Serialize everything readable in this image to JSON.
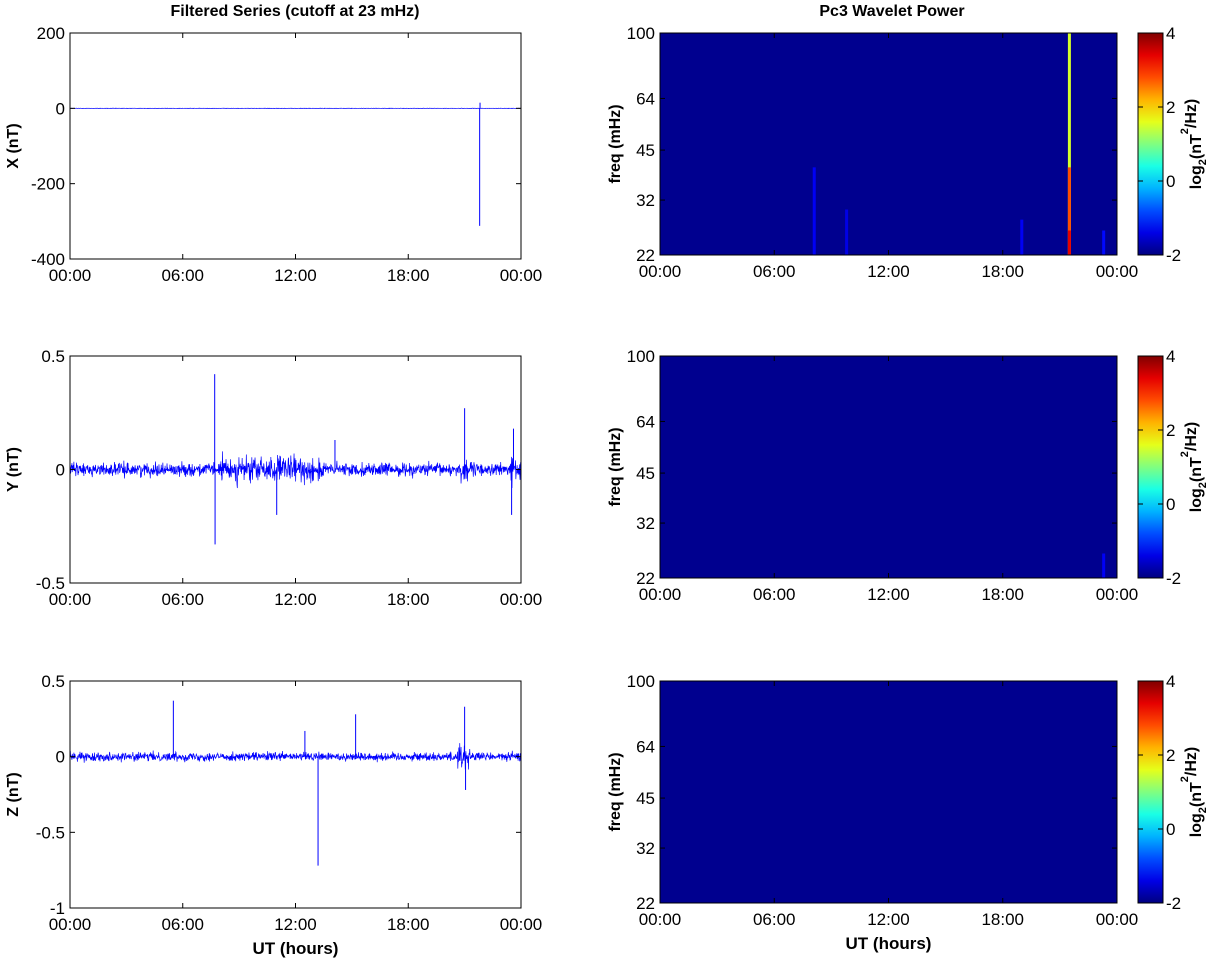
{
  "titles": {
    "left": "Filtered Series (cutoff at 23 mHz)",
    "right": "Pc3 Wavelet Power"
  },
  "xlabel": "UT (hours)",
  "colors": {
    "trace": "#0000ff",
    "spectrogram_bg": "#00008f",
    "axis": "#000000"
  },
  "chart_data": [
    {
      "type": "line",
      "ylabel": "X (nT)",
      "xlabel": "",
      "x_ticks": [
        "00:00",
        "06:00",
        "12:00",
        "18:00",
        "00:00"
      ],
      "xlim": [
        0,
        24
      ],
      "ylim": [
        -400,
        200
      ],
      "y_ticks": [
        200,
        0,
        -200,
        -400
      ],
      "y_tick_labels": [
        "200",
        "0",
        "-200",
        "-400"
      ],
      "series": [
        {
          "baseline": 0,
          "noise": 0.5,
          "spikes": [
            {
              "x": 21.8,
              "y": -312
            },
            {
              "x": 21.82,
              "y": 15
            }
          ]
        }
      ]
    },
    {
      "type": "line",
      "ylabel": "Y (nT)",
      "xlabel": "",
      "x_ticks": [
        "00:00",
        "06:00",
        "12:00",
        "18:00",
        "00:00"
      ],
      "xlim": [
        0,
        24
      ],
      "ylim": [
        -0.5,
        0.5
      ],
      "y_ticks": [
        0.5,
        0,
        -0.5
      ],
      "y_tick_labels": [
        "0.5",
        "0",
        "-0.5"
      ],
      "series": [
        {
          "baseline": 0,
          "noise": 0.03,
          "bursts": [
            {
              "x0": 8.0,
              "x1": 13.5,
              "amp": 0.06
            },
            {
              "x0": 20.8,
              "x1": 21.2,
              "amp": 0.07
            },
            {
              "x0": 23.4,
              "x1": 24,
              "amp": 0.06
            }
          ],
          "spikes": [
            {
              "x": 7.7,
              "y": 0.42
            },
            {
              "x": 7.72,
              "y": -0.33
            },
            {
              "x": 21.0,
              "y": 0.27
            },
            {
              "x": 23.6,
              "y": 0.18
            },
            {
              "x": 23.5,
              "y": -0.2
            },
            {
              "x": 11.0,
              "y": -0.2
            },
            {
              "x": 14.1,
              "y": 0.13
            }
          ]
        }
      ]
    },
    {
      "type": "line",
      "ylabel": "Z (nT)",
      "xlabel": "UT (hours)",
      "x_ticks": [
        "00:00",
        "06:00",
        "12:00",
        "18:00",
        "00:00"
      ],
      "xlim": [
        0,
        24
      ],
      "ylim": [
        -1,
        0.5
      ],
      "y_ticks": [
        0.5,
        0,
        -0.5,
        -1
      ],
      "y_tick_labels": [
        "0.5",
        "0",
        "-0.5",
        "-1"
      ],
      "series": [
        {
          "baseline": 0,
          "noise": 0.03,
          "bursts": [
            {
              "x0": 20.6,
              "x1": 21.3,
              "amp": 0.1
            }
          ],
          "spikes": [
            {
              "x": 5.5,
              "y": 0.37
            },
            {
              "x": 13.2,
              "y": -0.72
            },
            {
              "x": 15.2,
              "y": 0.28
            },
            {
              "x": 21.0,
              "y": 0.33
            },
            {
              "x": 21.05,
              "y": -0.22
            },
            {
              "x": 12.5,
              "y": 0.17
            }
          ]
        }
      ]
    },
    {
      "type": "heatmap",
      "ylabel": "freq (mHz)",
      "xlabel": "",
      "x_ticks": [
        "00:00",
        "06:00",
        "12:00",
        "18:00",
        "00:00"
      ],
      "xlim": [
        0,
        24
      ],
      "y_scale": "log",
      "ylim": [
        22,
        100
      ],
      "y_ticks": [
        100,
        64,
        45,
        32,
        22
      ],
      "y_tick_labels": [
        "100",
        "64",
        "45",
        "32",
        "22"
      ],
      "colorbar": {
        "label": "log2(nT2/Hz)",
        "label_main": "log",
        "label_sub": "2",
        "label_open": "(nT",
        "label_sup": "2",
        "label_close": "/Hz)",
        "range": [
          -2,
          4
        ],
        "ticks": [
          4,
          2,
          0,
          -2
        ],
        "tick_labels": [
          "4",
          "2",
          "0",
          "-2"
        ]
      },
      "features": [
        {
          "x": 21.5,
          "f_low": 22,
          "f_high": 100,
          "value": 1.5
        },
        {
          "x": 21.5,
          "f_low": 22,
          "f_high": 40,
          "value": 2.8
        },
        {
          "x": 21.5,
          "f_low": 22,
          "f_high": 26,
          "value": 3.4
        },
        {
          "x": 8.1,
          "f_low": 22,
          "f_high": 40,
          "value": -1.3
        },
        {
          "x": 9.8,
          "f_low": 22,
          "f_high": 30,
          "value": -1.4
        },
        {
          "x": 19.0,
          "f_low": 22,
          "f_high": 28,
          "value": -1.3
        },
        {
          "x": 23.3,
          "f_low": 22,
          "f_high": 26,
          "value": -1.2
        }
      ]
    },
    {
      "type": "heatmap",
      "ylabel": "freq (mHz)",
      "xlabel": "",
      "x_ticks": [
        "00:00",
        "06:00",
        "12:00",
        "18:00",
        "00:00"
      ],
      "xlim": [
        0,
        24
      ],
      "y_scale": "log",
      "ylim": [
        22,
        100
      ],
      "y_ticks": [
        100,
        64,
        45,
        32,
        22
      ],
      "y_tick_labels": [
        "100",
        "64",
        "45",
        "32",
        "22"
      ],
      "colorbar": {
        "label": "log2(nT2/Hz)",
        "label_main": "log",
        "label_sub": "2",
        "label_open": "(nT",
        "label_sup": "2",
        "label_close": "/Hz)",
        "range": [
          -2,
          4
        ],
        "ticks": [
          4,
          2,
          0,
          -2
        ],
        "tick_labels": [
          "4",
          "2",
          "0",
          "-2"
        ]
      },
      "features": [
        {
          "x": 23.3,
          "f_low": 22,
          "f_high": 26,
          "value": -1.3
        }
      ]
    },
    {
      "type": "heatmap",
      "ylabel": "freq (mHz)",
      "xlabel": "UT (hours)",
      "x_ticks": [
        "00:00",
        "06:00",
        "12:00",
        "18:00",
        "00:00"
      ],
      "xlim": [
        0,
        24
      ],
      "y_scale": "log",
      "ylim": [
        22,
        100
      ],
      "y_ticks": [
        100,
        64,
        45,
        32,
        22
      ],
      "y_tick_labels": [
        "100",
        "64",
        "45",
        "32",
        "22"
      ],
      "colorbar": {
        "label": "log2(nT2/Hz)",
        "label_main": "log",
        "label_sub": "2",
        "label_open": "(nT",
        "label_sup": "2",
        "label_close": "/Hz)",
        "range": [
          -2,
          4
        ],
        "ticks": [
          4,
          2,
          0,
          -2
        ],
        "tick_labels": [
          "4",
          "2",
          "0",
          "-2"
        ]
      },
      "features": []
    }
  ]
}
